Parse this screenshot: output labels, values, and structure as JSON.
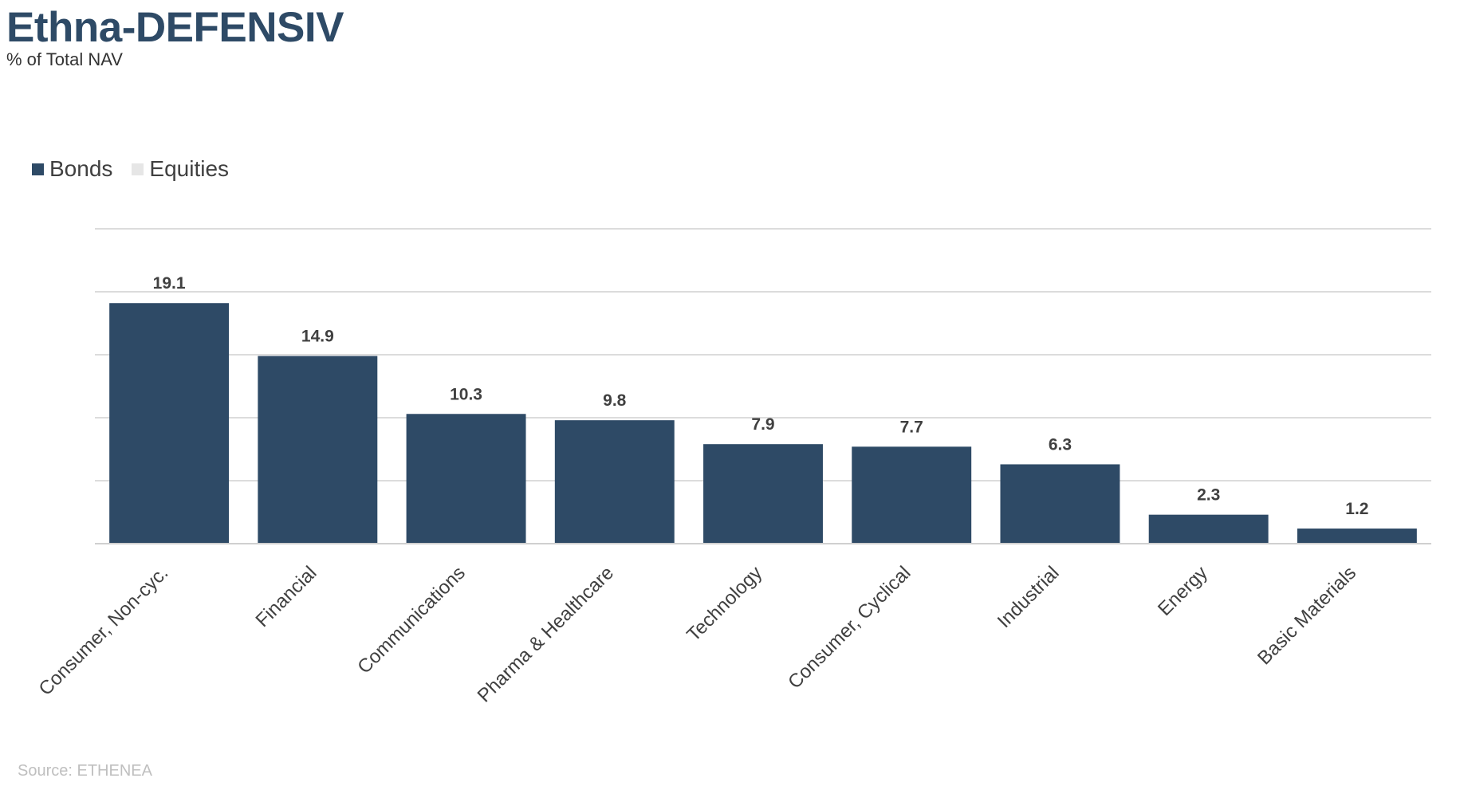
{
  "title": "Ethna-DEFENSIV",
  "subtitle": "% of Total NAV",
  "source": "Source: ETHENEA",
  "legend": [
    {
      "label": "Bonds",
      "color": "#2e4a66"
    },
    {
      "label": "Equities",
      "color": "#e6e6e6"
    }
  ],
  "chart_data": {
    "type": "bar",
    "categories": [
      "Consumer, Non-cyc.",
      "Financial",
      "Communications",
      "Pharma & Healthcare",
      "Technology",
      "Consumer, Cyclical",
      "Industrial",
      "Energy",
      "Basic Materials"
    ],
    "series": [
      {
        "name": "Bonds",
        "values": [
          19.1,
          14.9,
          10.3,
          9.8,
          7.9,
          7.7,
          6.3,
          2.3,
          1.2
        ],
        "color": "#2e4a66"
      },
      {
        "name": "Equities",
        "values": [
          0,
          0,
          0,
          0,
          0,
          0,
          0,
          0,
          0
        ],
        "color": "#e6e6e6"
      }
    ],
    "data_labels": [
      "19.1",
      "14.9",
      "10.3",
      "9.8",
      "7.9",
      "7.7",
      "6.3",
      "2.3",
      "1.2"
    ],
    "ylim": [
      0,
      25
    ],
    "gridline_step": 5,
    "grid": true,
    "legend_position": "top-left"
  }
}
